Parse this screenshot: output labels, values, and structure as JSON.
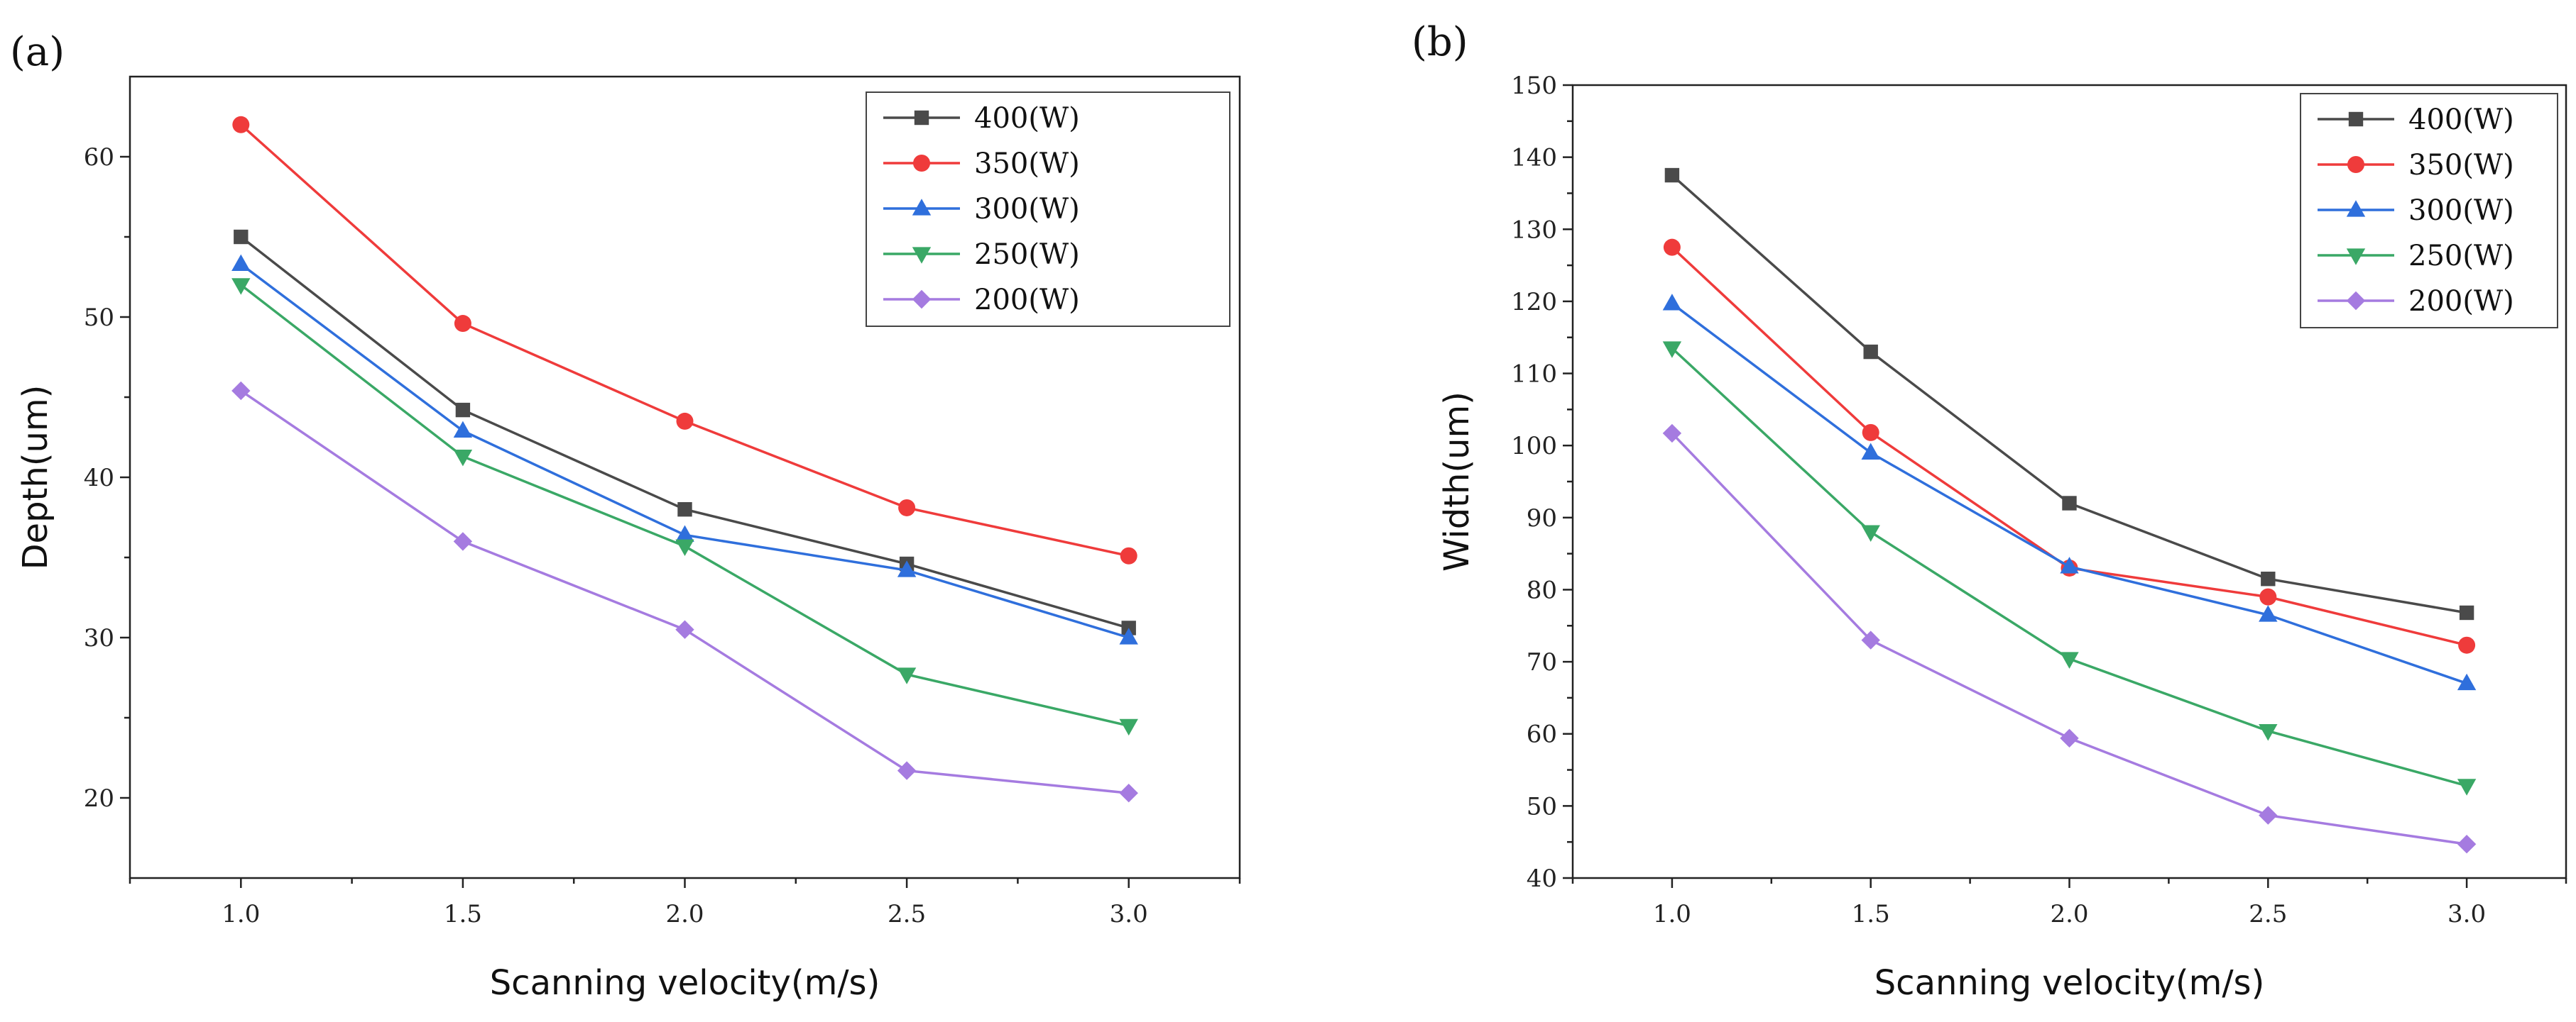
{
  "chart_data": [
    {
      "type": "line",
      "panel_label": "(a)",
      "title": "",
      "xlabel": "Scanning velocity(m/s)",
      "ylabel": "Depth(um)",
      "x": [
        1.0,
        1.5,
        2.0,
        2.5,
        3.0
      ],
      "x_tick_labels": [
        "1.0",
        "1.5",
        "2.0",
        "2.5",
        "3.0"
      ],
      "xlim": [
        0.75,
        3.25
      ],
      "y_ticks": [
        20,
        30,
        40,
        50,
        60
      ],
      "y_tick_labels": [
        "20",
        "30",
        "40",
        "50",
        "60"
      ],
      "ylim": [
        15,
        65
      ],
      "grid": false,
      "legend_position": "top-right",
      "series": [
        {
          "name": "400(W)",
          "color": "#4a4a4a",
          "marker": "square",
          "values": [
            55.0,
            44.2,
            38.0,
            34.6,
            30.6
          ]
        },
        {
          "name": "350(W)",
          "color": "#ef3b3b",
          "marker": "circle",
          "values": [
            62.0,
            49.6,
            43.5,
            38.1,
            35.1
          ]
        },
        {
          "name": "300(W)",
          "color": "#2f6fdc",
          "marker": "triangle-up",
          "values": [
            53.3,
            42.9,
            36.4,
            34.2,
            30.0
          ]
        },
        {
          "name": "250(W)",
          "color": "#3aa866",
          "marker": "triangle-down",
          "values": [
            52.0,
            41.3,
            35.7,
            27.7,
            24.5
          ]
        },
        {
          "name": "200(W)",
          "color": "#a57be0",
          "marker": "diamond",
          "values": [
            45.4,
            36.0,
            30.5,
            21.7,
            20.3
          ]
        }
      ]
    },
    {
      "type": "line",
      "panel_label": "(b)",
      "title": "",
      "xlabel": "Scanning velocity(m/s)",
      "ylabel": "Width(um)",
      "x": [
        1.0,
        1.5,
        2.0,
        2.5,
        3.0
      ],
      "x_tick_labels": [
        "1.0",
        "1.5",
        "2.0",
        "2.5",
        "3.0"
      ],
      "xlim": [
        0.75,
        3.25
      ],
      "y_ticks": [
        40,
        50,
        60,
        70,
        80,
        90,
        100,
        110,
        120,
        130,
        140,
        150
      ],
      "y_tick_labels": [
        "40",
        "50",
        "60",
        "70",
        "80",
        "90",
        "100",
        "110",
        "120",
        "130",
        "140",
        "150"
      ],
      "ylim": [
        40,
        150
      ],
      "grid": false,
      "legend_position": "top-right",
      "series": [
        {
          "name": "400(W)",
          "color": "#4a4a4a",
          "marker": "square",
          "values": [
            137.5,
            113.0,
            92.0,
            81.5,
            76.8
          ]
        },
        {
          "name": "350(W)",
          "color": "#ef3b3b",
          "marker": "circle",
          "values": [
            127.5,
            101.8,
            83.0,
            79.0,
            72.3
          ]
        },
        {
          "name": "300(W)",
          "color": "#2f6fdc",
          "marker": "triangle-up",
          "values": [
            119.7,
            99.0,
            83.2,
            76.5,
            67.0
          ]
        },
        {
          "name": "250(W)",
          "color": "#3aa866",
          "marker": "triangle-down",
          "values": [
            113.5,
            88.0,
            70.4,
            60.4,
            52.8
          ]
        },
        {
          "name": "200(W)",
          "color": "#a57be0",
          "marker": "diamond",
          "values": [
            101.7,
            73.0,
            59.4,
            48.7,
            44.7
          ]
        }
      ]
    }
  ]
}
